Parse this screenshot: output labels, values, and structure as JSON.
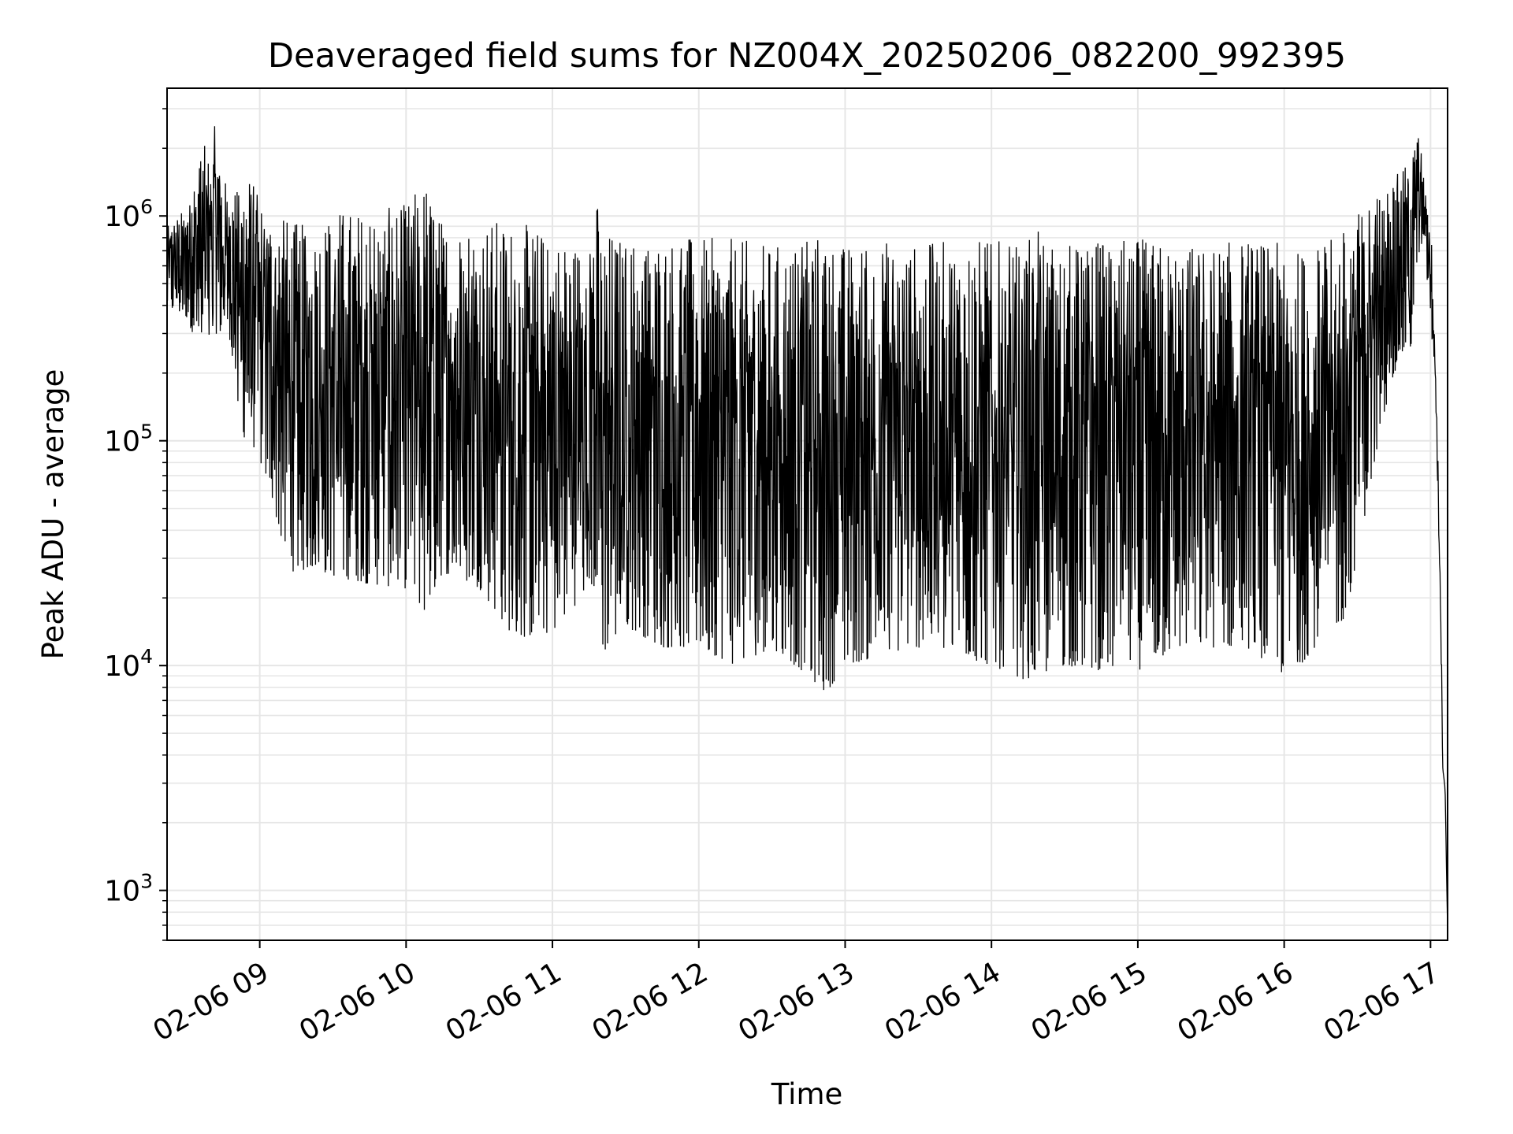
{
  "chart_data": {
    "type": "line",
    "title": "Deaveraged field sums for NZ004X_20250206_082200_992395",
    "xlabel": "Time",
    "ylabel": "Peak ADU - average",
    "yscale": "log",
    "ylim": [
      600,
      3700000
    ],
    "xlim": [
      "2025-02-06 08:22:00",
      "2025-02-06 17:07:00"
    ],
    "grid": true,
    "legend": "none",
    "line_color": "#000000",
    "grid_color": "#e6e6e6",
    "x_ticks": [
      {
        "value": "2025-02-06 09:00:00",
        "label": "02-06 09"
      },
      {
        "value": "2025-02-06 10:00:00",
        "label": "02-06 10"
      },
      {
        "value": "2025-02-06 11:00:00",
        "label": "02-06 11"
      },
      {
        "value": "2025-02-06 12:00:00",
        "label": "02-06 12"
      },
      {
        "value": "2025-02-06 13:00:00",
        "label": "02-06 13"
      },
      {
        "value": "2025-02-06 14:00:00",
        "label": "02-06 14"
      },
      {
        "value": "2025-02-06 15:00:00",
        "label": "02-06 15"
      },
      {
        "value": "2025-02-06 16:00:00",
        "label": "02-06 16"
      },
      {
        "value": "2025-02-06 17:00:00",
        "label": "02-06 17"
      }
    ],
    "y_ticks": [
      {
        "value": 1000,
        "base": "10",
        "exp": "3"
      },
      {
        "value": 10000,
        "base": "10",
        "exp": "4"
      },
      {
        "value": 100000,
        "base": "10",
        "exp": "5"
      },
      {
        "value": 1000000,
        "base": "10",
        "exp": "6"
      }
    ],
    "series": [
      {
        "x": [
          "2025-02-06 08:22:00",
          "2025-02-06 08:30:00",
          "2025-02-06 08:35:00",
          "2025-02-06 08:38:00",
          "2025-02-06 08:42:00",
          "2025-02-06 08:45:00",
          "2025-02-06 08:48:00",
          "2025-02-06 08:52:00",
          "2025-02-06 08:55:00",
          "2025-02-06 09:02:00",
          "2025-02-06 09:06:00",
          "2025-02-06 09:10:00",
          "2025-02-06 09:15:00",
          "2025-02-06 09:20:00",
          "2025-02-06 09:30:00",
          "2025-02-06 09:45:00",
          "2025-02-06 10:00:00",
          "2025-02-06 10:08:00",
          "2025-02-06 10:15:00",
          "2025-02-06 10:30:00",
          "2025-02-06 10:45:00",
          "2025-02-06 11:00:00",
          "2025-02-06 11:15:00",
          "2025-02-06 11:17:00",
          "2025-02-06 11:20:00",
          "2025-02-06 11:30:00",
          "2025-02-06 11:45:00",
          "2025-02-06 12:00:00",
          "2025-02-06 12:15:00",
          "2025-02-06 12:30:00",
          "2025-02-06 12:45:00",
          "2025-02-06 12:52:00",
          "2025-02-06 13:00:00",
          "2025-02-06 13:15:00",
          "2025-02-06 13:30:00",
          "2025-02-06 13:45:00",
          "2025-02-06 14:00:00",
          "2025-02-06 14:10:00",
          "2025-02-06 14:15:00",
          "2025-02-06 14:30:00",
          "2025-02-06 14:45:00",
          "2025-02-06 15:00:00",
          "2025-02-06 15:15:00",
          "2025-02-06 15:30:00",
          "2025-02-06 15:45:00",
          "2025-02-06 16:00:00",
          "2025-02-06 16:03:00",
          "2025-02-06 16:15:00",
          "2025-02-06 16:25:00",
          "2025-02-06 16:35:00",
          "2025-02-06 16:45:00",
          "2025-02-06 16:50:00",
          "2025-02-06 16:52:00",
          "2025-02-06 16:55:00",
          "2025-02-06 16:58:00",
          "2025-02-06 17:00:00",
          "2025-02-06 17:02:00",
          "2025-02-06 17:04:00",
          "2025-02-06 17:05:00",
          "2025-02-06 17:06:00",
          "2025-02-06 17:07:00"
        ],
        "y_high": [
          900000,
          1100000,
          1900000,
          2100000,
          2600000,
          1500000,
          1300000,
          1400000,
          1600000,
          1100000,
          1100000,
          1000000,
          950000,
          900000,
          1100000,
          1050000,
          1150000,
          1500000,
          950000,
          1000000,
          950000,
          850000,
          750000,
          1500000,
          900000,
          800000,
          850000,
          800000,
          800000,
          750000,
          800000,
          900000,
          750000,
          800000,
          750000,
          800000,
          800000,
          750000,
          900000,
          750000,
          800000,
          800000,
          750000,
          750000,
          800000,
          750000,
          700000,
          750000,
          900000,
          1200000,
          1500000,
          1700000,
          1800000,
          2500000,
          1300000,
          1000000,
          400000,
          60000,
          4500,
          3000,
          700
        ],
        "y_low": [
          380000,
          350000,
          260000,
          230000,
          300000,
          290000,
          280000,
          95000,
          110000,
          70000,
          50000,
          30000,
          25000,
          27000,
          25000,
          23000,
          22000,
          17000,
          26000,
          22000,
          13000,
          14000,
          22000,
          22000,
          11000,
          15000,
          12000,
          12000,
          10000,
          12000,
          9000,
          7500,
          10000,
          11000,
          12000,
          11000,
          10000,
          9000,
          8500,
          10000,
          9500,
          9500,
          11500,
          12000,
          12000,
          9000,
          9000,
          13000,
          16000,
          60000,
          200000,
          250000,
          250000,
          700000,
          600000,
          350000,
          100000,
          10000,
          3000,
          2500,
          600
        ]
      }
    ]
  }
}
